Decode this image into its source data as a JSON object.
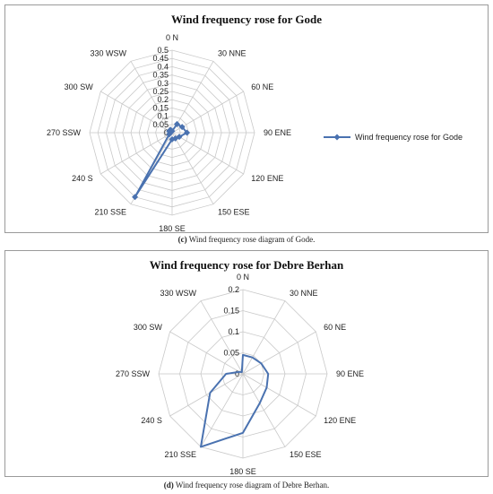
{
  "chart_data": [
    {
      "type": "radar",
      "title": "Wind frequency rose for Gode",
      "caption_tag": "(c)",
      "caption_text": "Wind frequency rose diagram of Gode.",
      "categories": [
        "0 N",
        "30 NNE",
        "60 NE",
        "90 ENE",
        "120 ENE",
        "150 ESE",
        "180 SE",
        "210 SSE",
        "240 S",
        "270 SSW",
        "300 SW",
        "330 WSW"
      ],
      "radial_ticks": [
        "0",
        "0.05",
        "0.1",
        "0.15",
        "0.2",
        "0.25",
        "0.3",
        "0.35",
        "0.4",
        "0.45",
        "0.5"
      ],
      "rmax": 0.5,
      "markers": true,
      "legend": "right",
      "color": "#4a72b0",
      "series": [
        {
          "name": "Wind frequency rose for Gode",
          "values": [
            0.01,
            0.06,
            0.07,
            0.09,
            0.05,
            0.04,
            0.04,
            0.45,
            0.02,
            0.01,
            0.02,
            0.02
          ]
        }
      ]
    },
    {
      "type": "radar",
      "title": "Wind frequency rose for Debre Berhan",
      "caption_tag": "(d)",
      "caption_text": "Wind frequency rose diagram of Debre Berhan.",
      "categories": [
        "0 N",
        "30 NNE",
        "60 NE",
        "90 ENE",
        "120 ENE",
        "150 ESE",
        "180 SE",
        "210 SSE",
        "240 S",
        "270 SSW",
        "300 SW",
        "330 WSW"
      ],
      "radial_ticks": [
        "0",
        "0.05",
        "0.1",
        "0.15",
        "0.2"
      ],
      "rmax": 0.2,
      "markers": false,
      "legend": "none",
      "color": "#4a72b0",
      "series": [
        {
          "values": [
            0.045,
            0.045,
            0.05,
            0.06,
            0.065,
            0.08,
            0.14,
            0.2,
            0.09,
            0.04,
            0.01,
            0.005
          ]
        }
      ]
    }
  ]
}
